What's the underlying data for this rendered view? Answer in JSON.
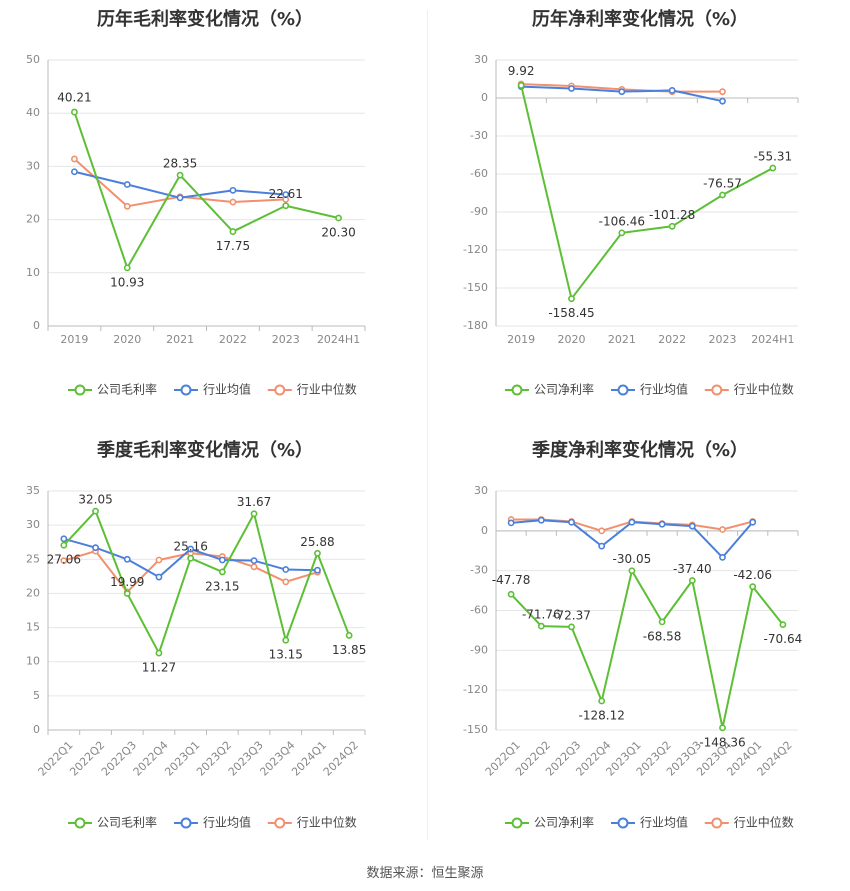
{
  "source": "数据来源：恒生聚源",
  "legend_labels": {
    "company_gross": "公司毛利率",
    "company_net": "公司净利率",
    "industry_mean": "行业均值",
    "industry_median": "行业中位数"
  },
  "colors": {
    "company": "#5cbf35",
    "mean": "#4a7fdc",
    "median": "#f2906d",
    "grid": "#e6e6e6",
    "axis": "#bbbbbb"
  },
  "chart_data": [
    {
      "type": "line",
      "title": "历年毛利率变化情况（%）",
      "categories": [
        "2019",
        "2020",
        "2021",
        "2022",
        "2023",
        "2024H1"
      ],
      "ylim": [
        0,
        50
      ],
      "yticks": [
        0,
        10,
        20,
        30,
        40,
        50
      ],
      "rotate_x": false,
      "legend": "bottom",
      "series": [
        {
          "name": "公司毛利率",
          "role": "company",
          "values": [
            40.21,
            10.93,
            28.35,
            17.75,
            22.61,
            20.3
          ],
          "labels": [
            "40.21",
            "10.93",
            "28.35",
            "17.75",
            "22.61",
            "20.30"
          ]
        },
        {
          "name": "行业均值",
          "role": "mean",
          "values": [
            29.0,
            26.6,
            24.1,
            25.5,
            24.7,
            null
          ]
        },
        {
          "name": "行业中位数",
          "role": "median",
          "values": [
            31.4,
            22.5,
            24.3,
            23.3,
            23.8,
            null
          ]
        }
      ]
    },
    {
      "type": "line",
      "title": "历年净利率变化情况（%）",
      "categories": [
        "2019",
        "2020",
        "2021",
        "2022",
        "2023",
        "2024H1"
      ],
      "ylim": [
        -180,
        30
      ],
      "yticks": [
        -180,
        -150,
        -120,
        -90,
        -60,
        -30,
        0,
        30
      ],
      "rotate_x": false,
      "legend": "bottom",
      "series": [
        {
          "name": "公司净利率",
          "role": "company",
          "values": [
            9.92,
            -158.45,
            -106.46,
            -101.28,
            -76.57,
            -55.31
          ],
          "labels": [
            "9.92",
            "-158.45",
            "-106.46",
            "-101.28",
            "-76.57",
            "-55.31"
          ]
        },
        {
          "name": "行业均值",
          "role": "mean",
          "values": [
            9.0,
            7.5,
            5.0,
            6.0,
            -2.5,
            null
          ]
        },
        {
          "name": "行业中位数",
          "role": "median",
          "values": [
            11.0,
            9.5,
            6.8,
            5.0,
            5.0,
            null
          ]
        }
      ]
    },
    {
      "type": "line",
      "title": "季度毛利率变化情况（%）",
      "categories": [
        "2022Q1",
        "2022Q2",
        "2022Q3",
        "2022Q4",
        "2023Q1",
        "2023Q2",
        "2023Q3",
        "2023Q4",
        "2024Q1",
        "2024Q2"
      ],
      "ylim": [
        0,
        35
      ],
      "yticks": [
        0,
        5,
        10,
        15,
        20,
        25,
        30,
        35
      ],
      "rotate_x": true,
      "legend": "bottom",
      "series": [
        {
          "name": "公司毛利率",
          "role": "company",
          "values": [
            27.06,
            32.05,
            19.99,
            11.27,
            25.16,
            23.15,
            31.67,
            13.15,
            25.88,
            13.85
          ],
          "labels": [
            "27.06",
            "32.05",
            "19.99",
            "11.27",
            "25.16",
            "23.15",
            "31.67",
            "13.15",
            "25.88",
            "13.85"
          ]
        },
        {
          "name": "行业均值",
          "role": "mean",
          "values": [
            28.0,
            26.7,
            25.0,
            22.4,
            26.5,
            24.9,
            24.8,
            23.5,
            23.4,
            null
          ]
        },
        {
          "name": "行业中位数",
          "role": "median",
          "values": [
            24.8,
            26.2,
            20.2,
            24.9,
            25.9,
            25.4,
            23.9,
            21.7,
            23.1,
            null
          ]
        }
      ]
    },
    {
      "type": "line",
      "title": "季度净利率变化情况（%）",
      "categories": [
        "2022Q1",
        "2022Q2",
        "2022Q3",
        "2022Q4",
        "2023Q1",
        "2023Q2",
        "2023Q3",
        "2023Q4",
        "2024Q1",
        "2024Q2"
      ],
      "ylim": [
        -150,
        30
      ],
      "yticks": [
        -150,
        -120,
        -90,
        -60,
        -30,
        0,
        30
      ],
      "rotate_x": true,
      "legend": "bottom",
      "series": [
        {
          "name": "公司净利率",
          "role": "company",
          "values": [
            -47.78,
            -71.76,
            -72.37,
            -128.12,
            -30.05,
            -68.58,
            -37.4,
            -148.36,
            -42.06,
            -70.64
          ],
          "labels": [
            "-47.78",
            "-71.76",
            "-72.37",
            "-128.12",
            "-30.05",
            "-68.58",
            "-37.40",
            "-148.36",
            "-42.06",
            "-70.64"
          ]
        },
        {
          "name": "行业均值",
          "role": "mean",
          "values": [
            6.0,
            8.0,
            6.5,
            -11.5,
            6.5,
            5.0,
            3.5,
            -20.0,
            6.5,
            null
          ]
        },
        {
          "name": "行业中位数",
          "role": "median",
          "values": [
            8.5,
            8.5,
            7.0,
            0.0,
            7.0,
            5.5,
            4.5,
            1.0,
            7.0,
            null
          ]
        }
      ]
    }
  ]
}
